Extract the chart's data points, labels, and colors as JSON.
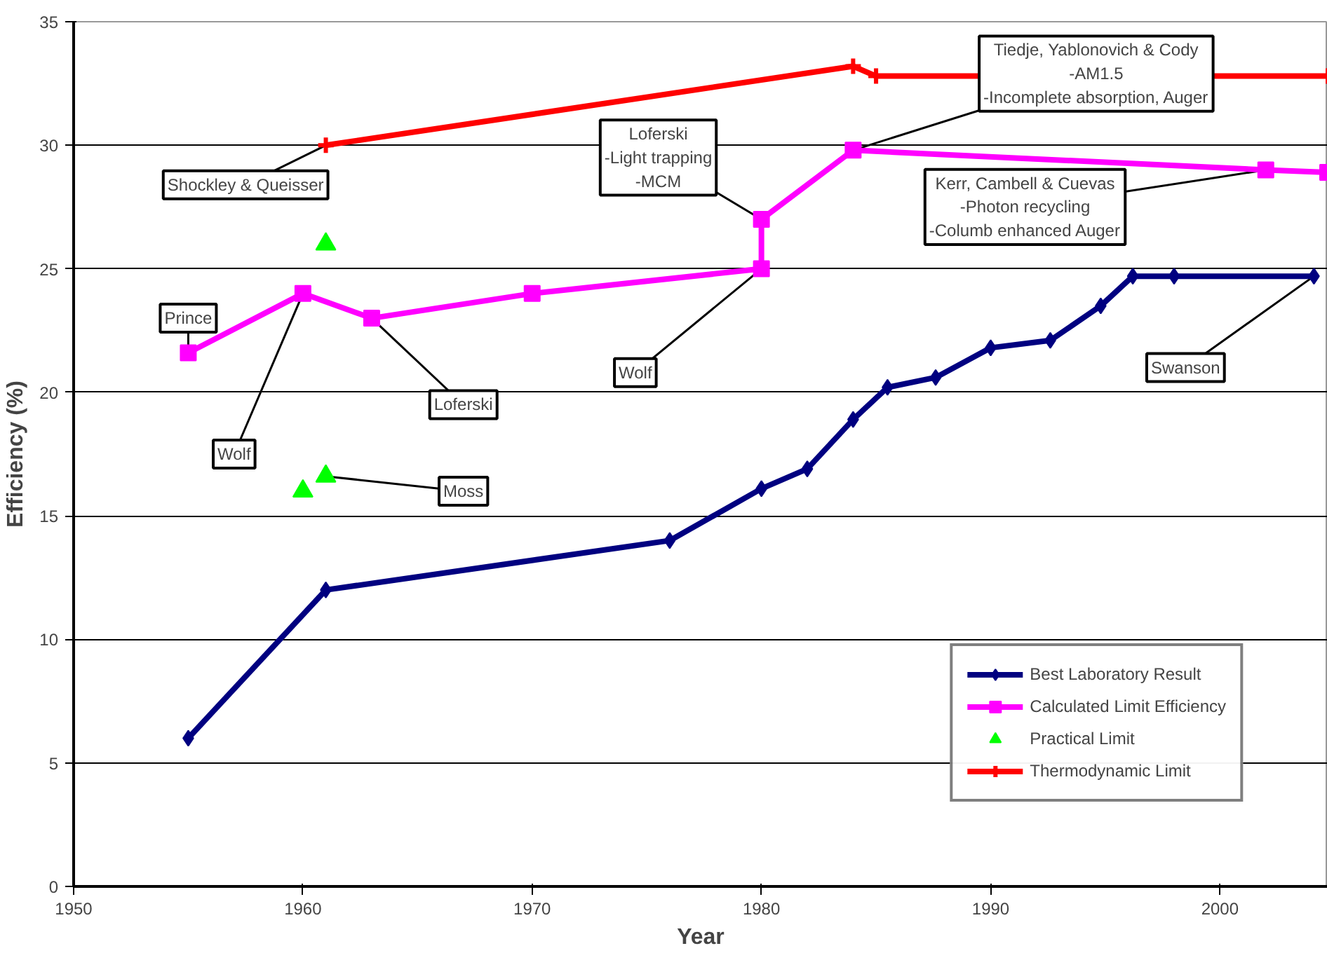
{
  "chart_data": {
    "type": "line",
    "xlabel": "Year",
    "ylabel": "Efficiency (%)",
    "xlim": [
      1950,
      2004.7
    ],
    "xticks": [
      1950,
      1960,
      1970,
      1980,
      1990,
      2000
    ],
    "ylim": [
      0,
      35
    ],
    "yticks": [
      0,
      5,
      10,
      15,
      20,
      25,
      30,
      35
    ],
    "grid": "y",
    "legend": "bottom right",
    "line_style": "solid",
    "series": [
      {
        "name": "Best Laboratory Result",
        "color": "#000080",
        "marker": "diamond",
        "x": [
          1955,
          1961,
          1976,
          1980,
          1982,
          1984,
          1985.5,
          1987.6,
          1990,
          1992.6,
          1994.8,
          1996.2,
          1998,
          2004.1
        ],
        "values": [
          6,
          12,
          14,
          16.1,
          16.9,
          18.9,
          20.2,
          20.6,
          21.8,
          22.1,
          23.5,
          24.7,
          24.7,
          24.7
        ]
      },
      {
        "name": "Calculated Limit Efficiency",
        "color": "#ff00ff",
        "marker": "square",
        "x": [
          1955,
          1960,
          1963,
          1970,
          1980,
          1980,
          1984,
          2002,
          2004.7
        ],
        "values": [
          21.6,
          24,
          23,
          24,
          25,
          27,
          29.8,
          29,
          28.9
        ]
      },
      {
        "name": "Practical Limit",
        "color": "#00ff00",
        "type": "scatter",
        "marker": "triangle",
        "x": [
          1961,
          1960,
          1961
        ],
        "values": [
          26,
          16,
          16.6
        ]
      },
      {
        "name": "Thermodynamic Limit",
        "color": "#ff0000",
        "marker": "cross",
        "x": [
          1961,
          1984,
          1985,
          2004.7
        ],
        "values": [
          30,
          33.2,
          32.8,
          32.8
        ]
      }
    ],
    "annotations": [
      {
        "text": "Shockley & Queisser",
        "x": 1961,
        "y": 30
      },
      {
        "text": "Prince",
        "x": 1955,
        "y": 21.6
      },
      {
        "text": "Wolf",
        "x": 1960,
        "y": 24
      },
      {
        "text": "Moss",
        "x": 1961,
        "y": 16.6
      },
      {
        "text": "Loferski",
        "x": 1963,
        "y": 23
      },
      {
        "text": "Wolf",
        "x": 1980,
        "y": 25
      },
      {
        "text": "Loferski\n-Light trapping\n-MCM",
        "x": 1980,
        "y": 27
      },
      {
        "text": "Tiedje, Yablonovich & Cody\n-AM1.5\n-Incomplete absorption, Auger",
        "x": 1984,
        "y": 29.8
      },
      {
        "text": "Kerr, Cambell & Cuevas\n-Photon recycling\n-Columb enhanced Auger",
        "x": 2002,
        "y": 29
      },
      {
        "text": "Swanson",
        "x": 2004.1,
        "y": 24.7
      }
    ]
  }
}
